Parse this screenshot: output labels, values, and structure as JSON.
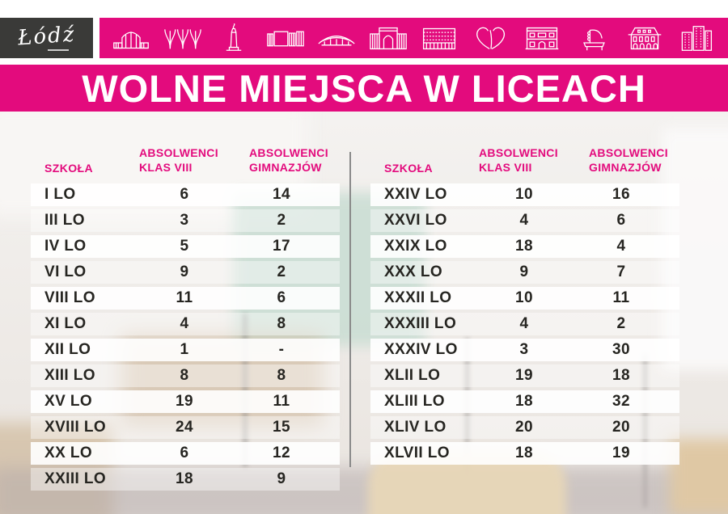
{
  "brand": {
    "logo_text": "Łódź",
    "accent_pink": "#e30b7d",
    "logo_bg": "#3a3a38"
  },
  "banner": {
    "title": "WOLNE MIEJSCA W LICEACH"
  },
  "icon_band": {
    "icons": [
      "market-hall-icon",
      "palm-arches-icon",
      "monument-icon",
      "modern-building-icon",
      "arena-icon",
      "arch-gate-icon",
      "striped-building-icon",
      "heart-icon",
      "palace-icon",
      "piano-monument-icon",
      "arcade-villa-icon",
      "office-tower-icon"
    ]
  },
  "table_headers": {
    "school": "SZKOŁA",
    "col1": [
      "ABSOLWENCI",
      "KLAS VIII"
    ],
    "col2": [
      "ABSOLWENCI",
      "GIMNAZJÓW"
    ]
  },
  "tables": {
    "left": [
      {
        "school": "I LO",
        "klas_viii": "6",
        "gimnazjow": "14"
      },
      {
        "school": "III LO",
        "klas_viii": "3",
        "gimnazjow": "2"
      },
      {
        "school": "IV LO",
        "klas_viii": "5",
        "gimnazjow": "17"
      },
      {
        "school": "VI LO",
        "klas_viii": "9",
        "gimnazjow": "2"
      },
      {
        "school": "VIII LO",
        "klas_viii": "11",
        "gimnazjow": "6"
      },
      {
        "school": "XI LO",
        "klas_viii": "4",
        "gimnazjow": "8"
      },
      {
        "school": "XII LO",
        "klas_viii": "1",
        "gimnazjow": "-"
      },
      {
        "school": "XIII LO",
        "klas_viii": "8",
        "gimnazjow": "8"
      },
      {
        "school": "XV LO",
        "klas_viii": "19",
        "gimnazjow": "11"
      },
      {
        "school": "XVIII LO",
        "klas_viii": "24",
        "gimnazjow": "15"
      },
      {
        "school": "XX LO",
        "klas_viii": "6",
        "gimnazjow": "12"
      },
      {
        "school": "XXIII LO",
        "klas_viii": "18",
        "gimnazjow": "9"
      }
    ],
    "right": [
      {
        "school": "XXIV LO",
        "klas_viii": "10",
        "gimnazjow": "16"
      },
      {
        "school": "XXVI LO",
        "klas_viii": "4",
        "gimnazjow": "6"
      },
      {
        "school": "XXIX LO",
        "klas_viii": "18",
        "gimnazjow": "4"
      },
      {
        "school": "XXX LO",
        "klas_viii": "9",
        "gimnazjow": "7"
      },
      {
        "school": "XXXII LO",
        "klas_viii": "10",
        "gimnazjow": "11"
      },
      {
        "school": "XXXIII LO",
        "klas_viii": "4",
        "gimnazjow": "2"
      },
      {
        "school": "XXXIV LO",
        "klas_viii": "3",
        "gimnazjow": "30"
      },
      {
        "school": "XLII LO",
        "klas_viii": "19",
        "gimnazjow": "18"
      },
      {
        "school": "XLIII LO",
        "klas_viii": "18",
        "gimnazjow": "32"
      },
      {
        "school": "XLIV LO",
        "klas_viii": "20",
        "gimnazjow": "20"
      },
      {
        "school": "XLVII LO",
        "klas_viii": "18",
        "gimnazjow": "19"
      }
    ]
  }
}
